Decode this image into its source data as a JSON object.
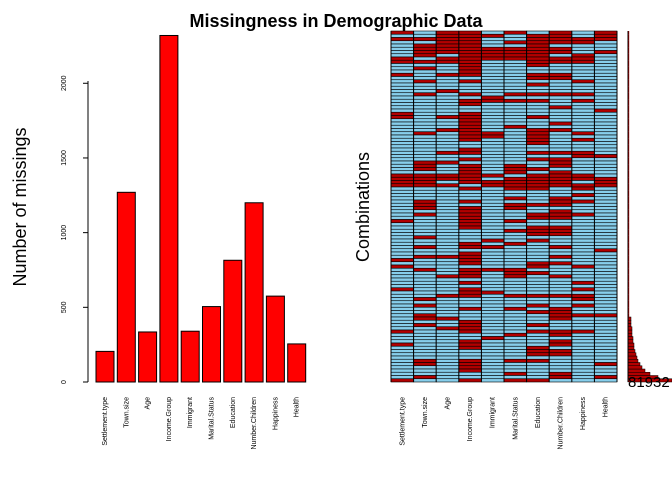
{
  "title": "Missingness in Demographic Data",
  "colors": {
    "bar": "#ff0000",
    "missing": "#b20000",
    "observed": "#87ceeb",
    "stroke": "#000000"
  },
  "chart_data": [
    {
      "type": "bar",
      "ylabel": "Number of missings",
      "categories": [
        "Settlement.type",
        "Town.size",
        "Age",
        "Income.Group",
        "Immigrant",
        "Marital.Status",
        "Education",
        "Number.Children",
        "Happiness",
        "Health"
      ],
      "values": [
        205,
        1270,
        335,
        2320,
        340,
        505,
        815,
        1200,
        575,
        255
      ],
      "ylim": [
        0,
        2350
      ],
      "yticks": [
        0,
        500,
        1000,
        1500,
        2000
      ],
      "grid": false
    },
    {
      "type": "heatmap",
      "ylabel": "Combinations",
      "categories": [
        "Settlement.type",
        "Town.size",
        "Age",
        "Income.Group",
        "Immigrant",
        "Marital.Status",
        "Education",
        "Number.Children",
        "Happiness",
        "Health"
      ],
      "combination_count_label": "81932",
      "grid": false
    }
  ]
}
